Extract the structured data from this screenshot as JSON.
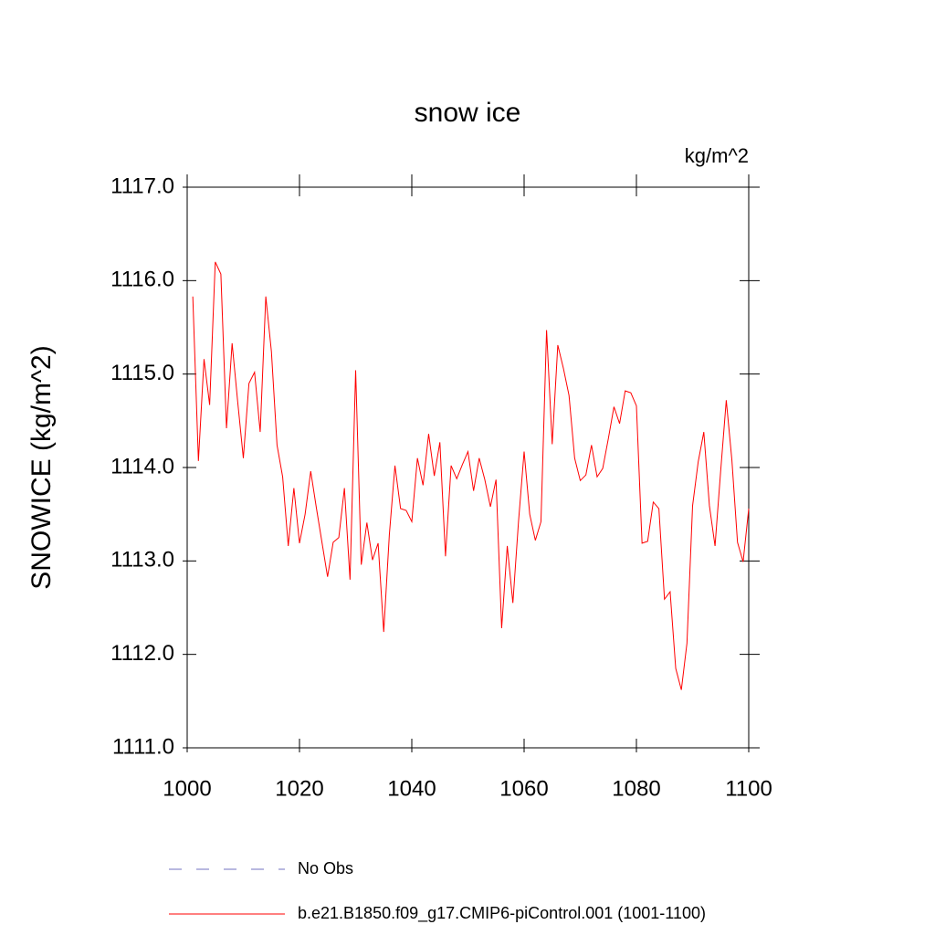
{
  "chart_data": {
    "type": "line",
    "title": "snow ice",
    "units_label": "kg/m^2",
    "y_label": "SNOWICE  (kg/m^2)",
    "x": [
      1001,
      1002,
      1003,
      1004,
      1005,
      1006,
      1007,
      1008,
      1009,
      1010,
      1011,
      1012,
      1013,
      1014,
      1015,
      1016,
      1017,
      1018,
      1019,
      1020,
      1021,
      1022,
      1023,
      1024,
      1025,
      1026,
      1027,
      1028,
      1029,
      1030,
      1031,
      1032,
      1033,
      1034,
      1035,
      1036,
      1037,
      1038,
      1039,
      1040,
      1041,
      1042,
      1043,
      1044,
      1045,
      1046,
      1047,
      1048,
      1049,
      1050,
      1051,
      1052,
      1053,
      1054,
      1055,
      1056,
      1057,
      1058,
      1059,
      1060,
      1061,
      1062,
      1063,
      1064,
      1065,
      1066,
      1067,
      1068,
      1069,
      1070,
      1071,
      1072,
      1073,
      1074,
      1075,
      1076,
      1077,
      1078,
      1079,
      1080,
      1081,
      1082,
      1083,
      1084,
      1085,
      1086,
      1087,
      1088,
      1089,
      1090,
      1091,
      1092,
      1093,
      1094,
      1095,
      1096,
      1097,
      1098,
      1099,
      1100
    ],
    "series": [
      {
        "name": "b.e21.B1850.f09_g17.CMIP6-piControl.001 (1001-1100)",
        "color": "#ff0000",
        "values": [
          1115.83,
          1114.07,
          1115.16,
          1114.67,
          1116.2,
          1116.07,
          1114.42,
          1115.33,
          1114.7,
          1114.1,
          1114.9,
          1115.02,
          1114.38,
          1115.83,
          1115.24,
          1114.24,
          1113.9,
          1113.16,
          1113.78,
          1113.19,
          1113.5,
          1113.96,
          1113.57,
          1113.2,
          1112.83,
          1113.2,
          1113.25,
          1113.78,
          1112.8,
          1115.04,
          1112.96,
          1113.41,
          1113.01,
          1113.19,
          1112.24,
          1113.28,
          1114.02,
          1113.56,
          1113.54,
          1113.42,
          1114.1,
          1113.81,
          1114.36,
          1113.91,
          1114.27,
          1113.05,
          1114.02,
          1113.88,
          1114.03,
          1114.17,
          1113.75,
          1114.1,
          1113.87,
          1113.58,
          1113.87,
          1112.28,
          1113.16,
          1112.55,
          1113.42,
          1114.17,
          1113.5,
          1113.22,
          1113.42,
          1115.47,
          1114.25,
          1115.31,
          1115.06,
          1114.77,
          1114.1,
          1113.86,
          1113.92,
          1114.24,
          1113.9,
          1113.99,
          1114.31,
          1114.65,
          1114.47,
          1114.82,
          1114.8,
          1114.66,
          1113.19,
          1113.21,
          1113.63,
          1113.56,
          1112.59,
          1112.67,
          1111.85,
          1111.62,
          1112.12,
          1113.59,
          1114.06,
          1114.38,
          1113.59,
          1113.16,
          1113.96,
          1114.72,
          1114.08,
          1113.2,
          1112.99,
          1113.56
        ]
      }
    ],
    "legend_extra": [
      {
        "name": "No Obs",
        "color": "#7070c0",
        "dashed": true
      }
    ],
    "xlim": [
      1000,
      1100
    ],
    "xticks": [
      1000,
      1020,
      1040,
      1060,
      1080,
      1100
    ],
    "ylim": [
      1111,
      1117
    ],
    "yticks": [
      {
        "value": 1111,
        "label": "1111.0"
      },
      {
        "value": 1112,
        "label": "1112.0"
      },
      {
        "value": 1113,
        "label": "1113.0"
      },
      {
        "value": 1114,
        "label": "1114.0"
      },
      {
        "value": 1115,
        "label": "1115.0"
      },
      {
        "value": 1116,
        "label": "1116.0"
      },
      {
        "value": 1117,
        "label": "1117.0"
      }
    ]
  }
}
